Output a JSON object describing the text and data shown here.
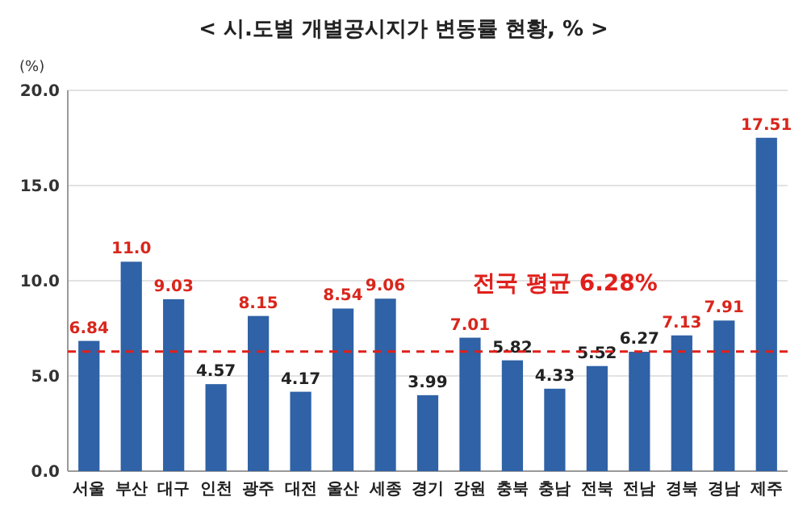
{
  "chart_data": {
    "type": "bar",
    "title": "< 시.도별 개별공시지가 변동률 현황, % >",
    "ylabel": "(%)",
    "categories": [
      "서울",
      "부산",
      "대구",
      "인천",
      "광주",
      "대전",
      "울산",
      "세종",
      "경기",
      "강원",
      "충북",
      "충남",
      "전북",
      "전남",
      "경북",
      "경남",
      "제주"
    ],
    "values": [
      6.84,
      11.0,
      9.03,
      4.57,
      8.15,
      4.17,
      8.54,
      9.06,
      3.99,
      7.01,
      5.82,
      4.33,
      5.52,
      6.27,
      7.13,
      7.91,
      17.51
    ],
    "value_labels": [
      "6.84",
      "11.0",
      "9.03",
      "4.57",
      "8.15",
      "4.17",
      "8.54",
      "9.06",
      "3.99",
      "7.01",
      "5.82",
      "4.33",
      "5.52",
      "6.27",
      "7.13",
      "7.91",
      "17.51"
    ],
    "color": "#2f62a6",
    "ylim": [
      0,
      20
    ],
    "yticks": [
      {
        "value": 0,
        "label": "0.0"
      },
      {
        "value": 5,
        "label": "5.0"
      },
      {
        "value": 10,
        "label": "10.0"
      },
      {
        "value": 15,
        "label": "15.0"
      },
      {
        "value": 20,
        "label": "20.0"
      }
    ],
    "grid": "y",
    "ref_lines": [
      {
        "axis": "y",
        "value": 6.28,
        "label": "전국 평균 6.28%",
        "color": "#e0201b",
        "line_style": "dashed"
      }
    ]
  }
}
